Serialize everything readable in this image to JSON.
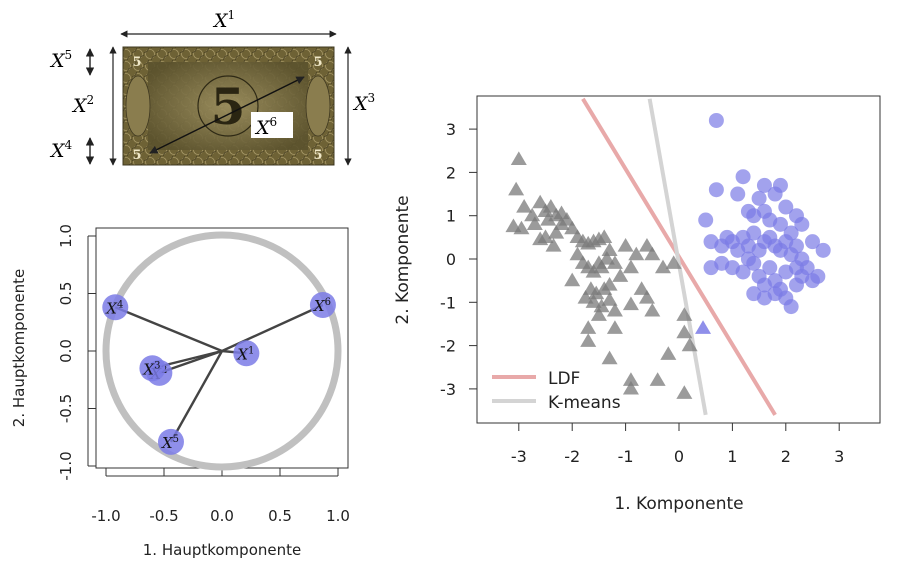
{
  "banknote": {
    "top_label": "X",
    "top_sup": "1",
    "left_top_label": "X",
    "left_top_sup": "5",
    "left_mid_label": "X",
    "left_mid_sup": "2",
    "left_bottom_label": "X",
    "left_bottom_sup": "4",
    "right_label": "X",
    "right_sup": "3",
    "diag_label": "X",
    "diag_sup": "6",
    "corner_numeral": "5",
    "center_numeral": "5",
    "note_colors": {
      "paper": "#7a6a3a",
      "dark": "#3f3820",
      "light": "#c8b98a"
    }
  },
  "chart_data": [
    {
      "type": "scatter",
      "subtype": "correlation-circle",
      "xlabel": "1. Hauptkomponente",
      "ylabel": "2. Hauptkomponente",
      "xlim": [
        -1.0,
        1.0
      ],
      "ylim": [
        -1.0,
        1.0
      ],
      "xticks": [
        "-1.0",
        "-0.5",
        "0.0",
        "0.5",
        "1.0"
      ],
      "yticks": [
        "-1.0",
        "-0.5",
        "0.0",
        "0.5",
        "1.0"
      ],
      "circle_color": "#c0c0c0",
      "point_color": "#7b7be6",
      "vectors": [
        {
          "label": "X",
          "sup": "1",
          "x": 0.21,
          "y": -0.02
        },
        {
          "label": "X",
          "sup": "2",
          "x": -0.54,
          "y": -0.19
        },
        {
          "label": "X",
          "sup": "3",
          "x": -0.6,
          "y": -0.15
        },
        {
          "label": "X",
          "sup": "4",
          "x": -0.92,
          "y": 0.38
        },
        {
          "label": "X",
          "sup": "5",
          "x": -0.44,
          "y": -0.79
        },
        {
          "label": "X",
          "sup": "6",
          "x": 0.87,
          "y": 0.4
        }
      ]
    },
    {
      "type": "scatter",
      "xlabel": "1. Komponente",
      "ylabel": "2. Komponente",
      "xlim": [
        -3.8,
        3.8
      ],
      "ylim": [
        -3.6,
        3.7
      ],
      "xticks": [
        "-3",
        "-2",
        "-1",
        "0",
        "1",
        "2",
        "3"
      ],
      "yticks": [
        "-3",
        "-2",
        "-1",
        "0",
        "1",
        "2",
        "3"
      ],
      "legend": {
        "position": "bottom-left",
        "entries": [
          {
            "label": "LDF",
            "color": "#e8a9a9"
          },
          {
            "label": "K-means",
            "color": "#d4d4d4"
          }
        ]
      },
      "lines": [
        {
          "name": "LDF",
          "color": "#e8a9a9",
          "from": [
            -1.8,
            3.7
          ],
          "to": [
            1.8,
            -3.6
          ]
        },
        {
          "name": "K-means",
          "color": "#d4d4d4",
          "from": [
            -0.55,
            3.7
          ],
          "to": [
            0.5,
            -3.6
          ]
        }
      ],
      "series": [
        {
          "marker": "triangle",
          "color": "#7a7a7a",
          "points": [
            [
              -3.0,
              2.3
            ],
            [
              -3.05,
              1.6
            ],
            [
              -2.9,
              1.2
            ],
            [
              -2.75,
              1.0
            ],
            [
              -3.1,
              0.75
            ],
            [
              -2.95,
              0.7
            ],
            [
              -2.7,
              0.8
            ],
            [
              -2.6,
              1.3
            ],
            [
              -2.5,
              1.1
            ],
            [
              -2.4,
              1.2
            ],
            [
              -2.45,
              0.9
            ],
            [
              -2.3,
              1.0
            ],
            [
              -2.2,
              1.05
            ],
            [
              -2.2,
              0.8
            ],
            [
              -2.1,
              0.9
            ],
            [
              -2.0,
              0.7
            ],
            [
              -2.3,
              0.6
            ],
            [
              -2.5,
              0.5
            ],
            [
              -2.6,
              0.45
            ],
            [
              -2.35,
              0.3
            ],
            [
              -1.9,
              0.5
            ],
            [
              -1.8,
              0.4
            ],
            [
              -1.7,
              0.35
            ],
            [
              -1.6,
              0.4
            ],
            [
              -1.5,
              0.45
            ],
            [
              -1.4,
              0.5
            ],
            [
              -1.3,
              0.2
            ],
            [
              -1.9,
              0.1
            ],
            [
              -1.8,
              -0.1
            ],
            [
              -1.7,
              -0.2
            ],
            [
              -1.6,
              -0.3
            ],
            [
              -1.5,
              -0.1
            ],
            [
              -1.45,
              -0.2
            ],
            [
              -1.35,
              0.0
            ],
            [
              -1.2,
              -0.1
            ],
            [
              -1.1,
              -0.4
            ],
            [
              -1.3,
              -0.6
            ],
            [
              -1.4,
              -0.7
            ],
            [
              -1.55,
              -0.8
            ],
            [
              -1.65,
              -0.7
            ],
            [
              -1.75,
              -0.9
            ],
            [
              -1.6,
              -1.0
            ],
            [
              -1.45,
              -1.1
            ],
            [
              -1.3,
              -0.95
            ],
            [
              -1.2,
              -1.2
            ],
            [
              -1.5,
              -1.3
            ],
            [
              -1.7,
              -1.6
            ],
            [
              -1.2,
              -1.6
            ],
            [
              -0.9,
              -1.05
            ],
            [
              -0.7,
              -0.7
            ],
            [
              -0.6,
              -0.9
            ],
            [
              -0.5,
              -1.2
            ],
            [
              -0.3,
              -0.2
            ],
            [
              -0.1,
              -0.1
            ],
            [
              -0.5,
              0.1
            ],
            [
              -0.6,
              0.3
            ],
            [
              -0.8,
              0.1
            ],
            [
              -0.9,
              -0.2
            ],
            [
              -1.0,
              0.3
            ],
            [
              -0.2,
              -2.2
            ],
            [
              0.1,
              -1.7
            ],
            [
              0.1,
              -1.3
            ],
            [
              0.2,
              -2.0
            ],
            [
              -1.3,
              -2.3
            ],
            [
              -0.9,
              -2.8
            ],
            [
              -0.4,
              -2.8
            ],
            [
              -0.9,
              -3.0
            ],
            [
              0.1,
              -3.1
            ],
            [
              -1.7,
              -1.9
            ],
            [
              -2.0,
              -0.5
            ]
          ]
        },
        {
          "marker": "circle",
          "color": "#7b7be6",
          "points": [
            [
              0.7,
              3.2
            ],
            [
              0.7,
              1.6
            ],
            [
              1.2,
              1.9
            ],
            [
              1.5,
              1.4
            ],
            [
              1.6,
              1.7
            ],
            [
              1.8,
              1.5
            ],
            [
              1.9,
              1.7
            ],
            [
              2.0,
              1.2
            ],
            [
              2.2,
              1.0
            ],
            [
              2.3,
              0.8
            ],
            [
              1.1,
              1.5
            ],
            [
              1.3,
              1.1
            ],
            [
              1.4,
              1.0
            ],
            [
              1.6,
              1.1
            ],
            [
              1.7,
              0.9
            ],
            [
              1.9,
              0.8
            ],
            [
              2.1,
              0.6
            ],
            [
              2.5,
              0.4
            ],
            [
              2.7,
              0.2
            ],
            [
              0.5,
              0.9
            ],
            [
              0.6,
              0.4
            ],
            [
              0.8,
              0.3
            ],
            [
              0.9,
              0.5
            ],
            [
              1.0,
              0.4
            ],
            [
              1.1,
              0.2
            ],
            [
              1.2,
              0.5
            ],
            [
              1.3,
              0.3
            ],
            [
              1.4,
              0.6
            ],
            [
              1.5,
              0.2
            ],
            [
              1.6,
              0.4
            ],
            [
              1.7,
              0.5
            ],
            [
              1.8,
              0.3
            ],
            [
              1.9,
              0.2
            ],
            [
              2.0,
              0.4
            ],
            [
              2.1,
              0.1
            ],
            [
              2.2,
              0.3
            ],
            [
              2.3,
              0.0
            ],
            [
              2.4,
              -0.2
            ],
            [
              2.5,
              -0.5
            ],
            [
              2.6,
              -0.4
            ],
            [
              0.6,
              -0.2
            ],
            [
              0.8,
              -0.1
            ],
            [
              1.0,
              -0.2
            ],
            [
              1.2,
              -0.3
            ],
            [
              1.4,
              -0.1
            ],
            [
              1.5,
              -0.4
            ],
            [
              1.6,
              -0.6
            ],
            [
              1.7,
              -0.2
            ],
            [
              1.8,
              -0.5
            ],
            [
              1.9,
              -0.7
            ],
            [
              2.0,
              -0.9
            ],
            [
              2.1,
              -1.1
            ],
            [
              2.2,
              -0.6
            ],
            [
              2.3,
              -0.4
            ],
            [
              1.6,
              -0.9
            ],
            [
              1.4,
              -0.8
            ],
            [
              1.8,
              -0.8
            ],
            [
              2.0,
              -0.3
            ],
            [
              2.2,
              -0.2
            ],
            [
              1.3,
              0.0
            ]
          ]
        }
      ]
    }
  ]
}
